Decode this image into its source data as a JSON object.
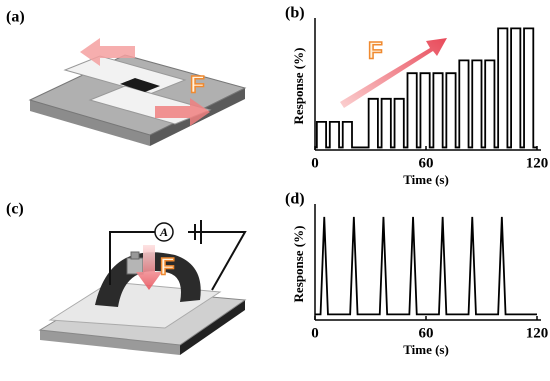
{
  "panels": {
    "a": {
      "label": "(a)",
      "force_label": "F"
    },
    "c": {
      "label": "(c)",
      "force_label": "F",
      "ammeter_label": "A"
    }
  },
  "chart_data": [
    {
      "type": "line",
      "label": "(b)",
      "annotation": "F",
      "xlabel": "Time (s)",
      "ylabel": "Response (%)",
      "xlim": [
        0,
        120
      ],
      "ylim": [
        0,
        100
      ],
      "xticks": [
        0,
        60,
        120
      ],
      "x": [
        0,
        1,
        1,
        6,
        6,
        8,
        8,
        13,
        13,
        15,
        15,
        20,
        20,
        29,
        29,
        34,
        34,
        36,
        36,
        41,
        41,
        43,
        43,
        48,
        48,
        50,
        50,
        55,
        55,
        57,
        57,
        62,
        62,
        64,
        64,
        69,
        69,
        71,
        71,
        76,
        76,
        78,
        78,
        83,
        83,
        85,
        85,
        90,
        90,
        92,
        92,
        97,
        97,
        99,
        99,
        104,
        104,
        106,
        106,
        111,
        111,
        113,
        113,
        118,
        118,
        120
      ],
      "series": [
        {
          "color": "#000000",
          "values": [
            2,
            2,
            22,
            22,
            2,
            2,
            22,
            22,
            2,
            2,
            22,
            22,
            2,
            2,
            40,
            40,
            2,
            2,
            40,
            40,
            2,
            2,
            40,
            40,
            2,
            2,
            60,
            60,
            2,
            2,
            60,
            60,
            2,
            2,
            60,
            60,
            2,
            2,
            60,
            60,
            2,
            2,
            70,
            70,
            2,
            2,
            70,
            70,
            2,
            2,
            70,
            70,
            2,
            2,
            95,
            95,
            2,
            2,
            95,
            95,
            2,
            2,
            95,
            95,
            2,
            2
          ]
        }
      ]
    },
    {
      "type": "line",
      "label": "(d)",
      "xlabel": "Time (s)",
      "ylabel": "Response (%)",
      "xlim": [
        0,
        120
      ],
      "ylim": [
        0,
        100
      ],
      "xticks": [
        0,
        60,
        120
      ],
      "x": [
        0,
        3,
        5,
        7,
        19,
        21,
        23,
        35,
        37,
        39,
        51,
        53,
        55,
        67,
        69,
        71,
        83,
        85,
        87,
        99,
        101,
        103,
        120
      ],
      "series": [
        {
          "color": "#000000",
          "values": [
            5,
            5,
            92,
            5,
            5,
            92,
            5,
            5,
            92,
            5,
            5,
            92,
            5,
            5,
            92,
            5,
            5,
            92,
            5,
            5,
            92,
            5,
            5
          ]
        }
      ]
    }
  ]
}
